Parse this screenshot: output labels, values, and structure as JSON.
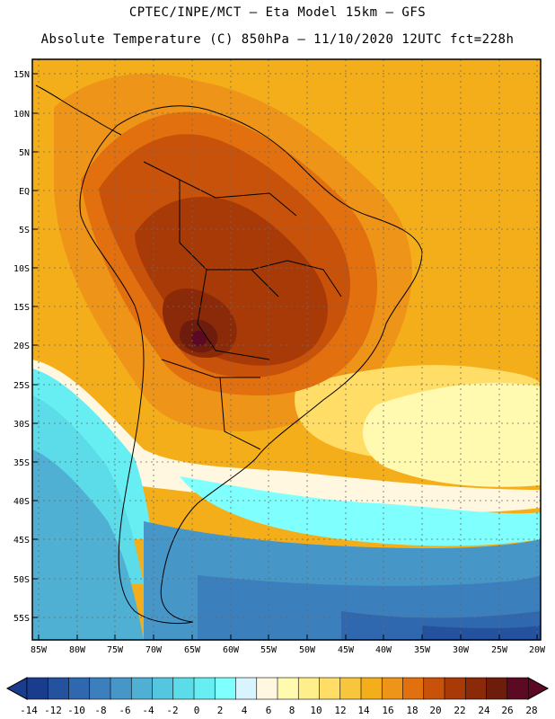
{
  "header": {
    "line1": "CPTEC/INPE/MCT —  Eta Model 15km — GFS",
    "line2": "Absolute Temperature (C) 850hPa — 11/10/2020 12UTC fct=228h"
  },
  "axes": {
    "lat_labels": [
      "15N",
      "10N",
      "5N",
      "EQ",
      "5S",
      "10S",
      "15S",
      "20S",
      "25S",
      "30S",
      "35S",
      "40S",
      "45S",
      "50S",
      "55S"
    ],
    "lon_labels": [
      "85W",
      "80W",
      "75W",
      "70W",
      "65W",
      "60W",
      "55W",
      "50W",
      "45W",
      "40W",
      "35W",
      "30W",
      "25W",
      "20W"
    ]
  },
  "colorbar": {
    "labels": [
      "-14",
      "-12",
      "-10",
      "-8",
      "-6",
      "-4",
      "-2",
      "0",
      "2",
      "4",
      "6",
      "8",
      "10",
      "12",
      "14",
      "16",
      "18",
      "20",
      "22",
      "24",
      "26",
      "28"
    ],
    "colors": [
      "#1a3c8c",
      "#24529e",
      "#2f68ae",
      "#3b7fbd",
      "#4697c8",
      "#4fb0d4",
      "#55c6df",
      "#5cdbe8",
      "#66eef2",
      "#80ffff",
      "#d8f4ff",
      "#fff7e0",
      "#fffab0",
      "#ffee8c",
      "#ffdd66",
      "#f8c63c",
      "#f4ae1a",
      "#ee9418",
      "#e2700e",
      "#c8520a",
      "#a83a08",
      "#8a2a08",
      "#6e1c0c",
      "#5c0a24"
    ]
  },
  "map": {
    "contour_colors": {
      "orange_bg": "#f4ae1a",
      "orange_dark": "#ee9418",
      "hot1": "#e2700e",
      "hot2": "#c8520a",
      "hot3": "#a83a08",
      "hot4": "#8a2a08",
      "hot5": "#6e1c0c",
      "hot6": "#5c0a24",
      "yellow": "#ffee8c",
      "pale_yellow": "#fffab0",
      "cream": "#fff7e0",
      "very_pale": "#d8f4ff",
      "cyan": "#66eef2",
      "light_cyan": "#80ffff",
      "blue1": "#5cdbe8",
      "blue2": "#4fb0d4",
      "blue3": "#4697c8",
      "blue4": "#3b7fbd",
      "blue5": "#2f68ae",
      "blue6": "#24529e"
    }
  }
}
